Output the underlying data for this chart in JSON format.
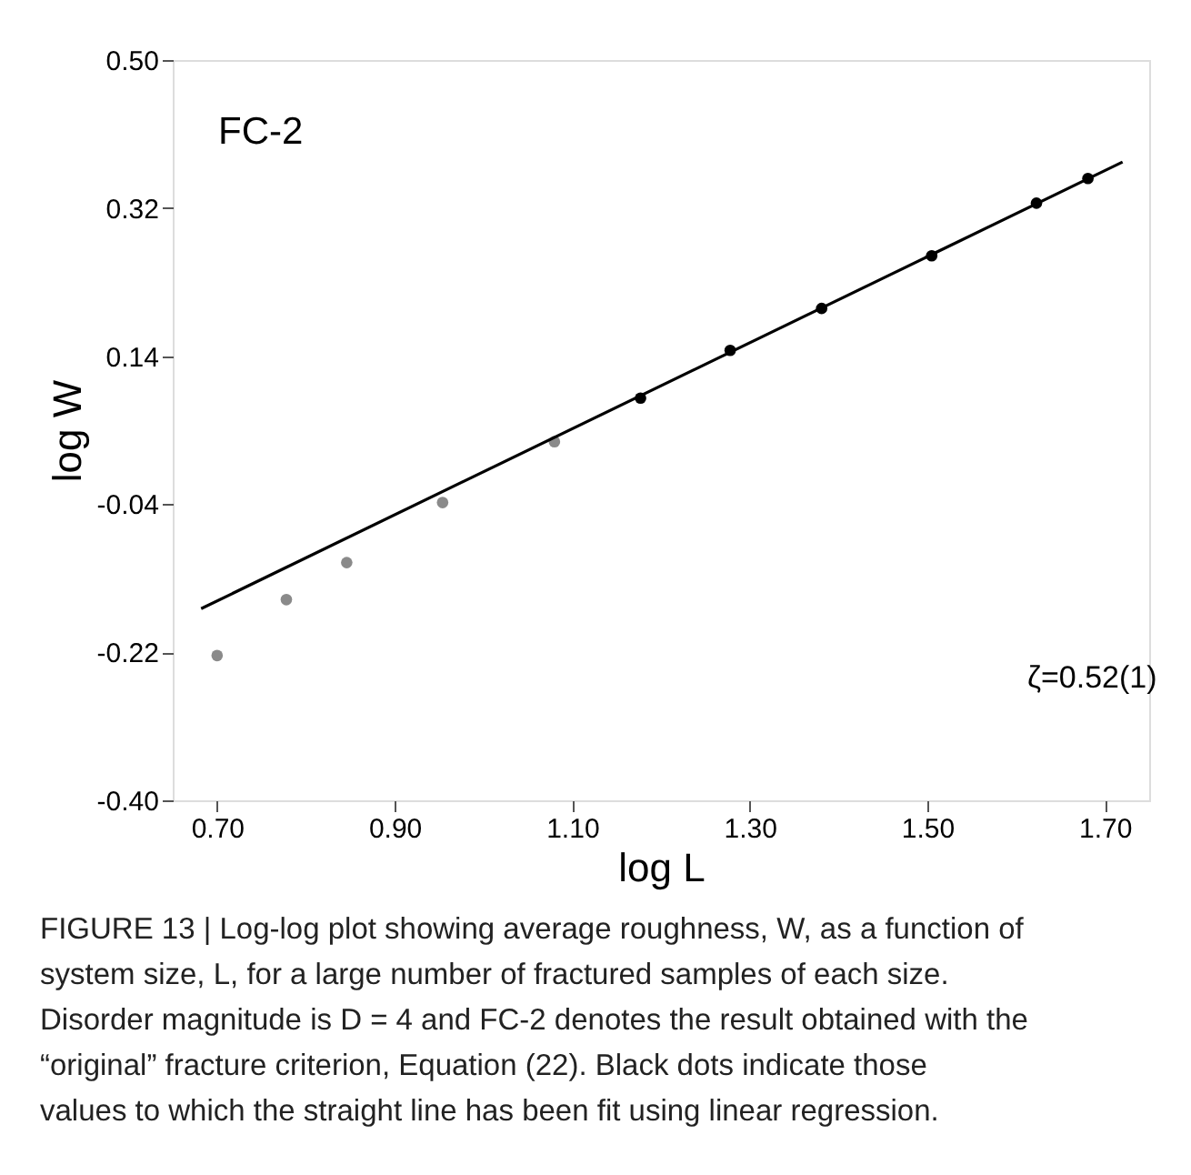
{
  "chart_data": {
    "type": "scatter",
    "xlabel": "log L",
    "ylabel": "log W",
    "xlim": [
      0.65,
      1.75
    ],
    "ylim": [
      -0.4,
      0.5
    ],
    "xticks": [
      {
        "value": 0.7,
        "label": "0.70"
      },
      {
        "value": 0.9,
        "label": "0.90"
      },
      {
        "value": 1.1,
        "label": "1.10"
      },
      {
        "value": 1.3,
        "label": "1.30"
      },
      {
        "value": 1.5,
        "label": "1.50"
      },
      {
        "value": 1.7,
        "label": "1.70"
      }
    ],
    "yticks": [
      {
        "value": -0.4,
        "label": "-0.40"
      },
      {
        "value": -0.22,
        "label": "-0.22"
      },
      {
        "value": -0.04,
        "label": "-0.04"
      },
      {
        "value": 0.14,
        "label": "0.14"
      },
      {
        "value": 0.32,
        "label": "0.32"
      },
      {
        "value": 0.5,
        "label": "0.50"
      }
    ],
    "grid": false,
    "marker": "circle",
    "series": [
      {
        "color": "#8a8a8a",
        "x": [
          0.7,
          0.778,
          0.846,
          0.954,
          1.08
        ],
        "values": [
          -0.224,
          -0.156,
          -0.111,
          -0.038,
          0.036
        ]
      },
      {
        "color": "#000000",
        "x": [
          1.177,
          1.278,
          1.381,
          1.505,
          1.623,
          1.681
        ],
        "values": [
          0.089,
          0.147,
          0.198,
          0.262,
          0.326,
          0.356
        ]
      },
      {
        "type": "line",
        "marker": "none",
        "color": "#000000",
        "x": [
          0.682,
          1.72
        ],
        "values": [
          -0.167,
          0.376
        ]
      }
    ],
    "annotations": [
      "FC-2",
      "ζ=0.52(1)",
      "FIGURE 13 | Log-log plot showing average roughness, W, as a function of system size, L, for a large number of fractured samples of each size. Disorder magnitude is D = 4 and FC-2 denotes the result obtained with the “original” fracture criterion, Equation (22). Black dots indicate those values to which the straight line has been fit using linear regression."
    ]
  }
}
